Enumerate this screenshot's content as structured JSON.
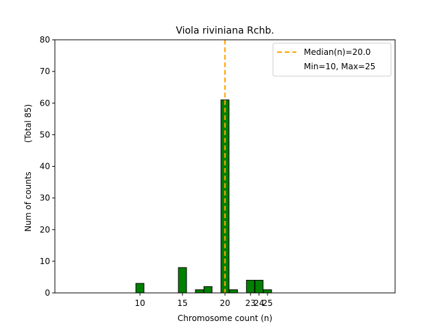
{
  "chart_data": {
    "type": "bar",
    "title": "Viola riviniana Rchb.",
    "xlabel": "Chromosome count (n)",
    "ylabel": "Num of counts",
    "ylabel_total": "(Total 85)",
    "xlim": [
      0,
      40
    ],
    "ylim": [
      0,
      80
    ],
    "yticks": [
      0,
      10,
      20,
      30,
      40,
      50,
      60,
      70,
      80
    ],
    "xticks": [
      10,
      15,
      20,
      23,
      24,
      25
    ],
    "x": [
      10,
      15,
      17,
      18,
      20,
      21,
      23,
      24,
      25
    ],
    "values": [
      3,
      8,
      1,
      2,
      61,
      1,
      4,
      4,
      1
    ],
    "bar_color": "#008000",
    "bar_edge_color": "#000000",
    "median_value": 20,
    "median_color": "#FFA500",
    "legend": {
      "position": "top-right",
      "entries": [
        "Median(n)=20.0",
        "Min=10, Max=25"
      ]
    }
  }
}
